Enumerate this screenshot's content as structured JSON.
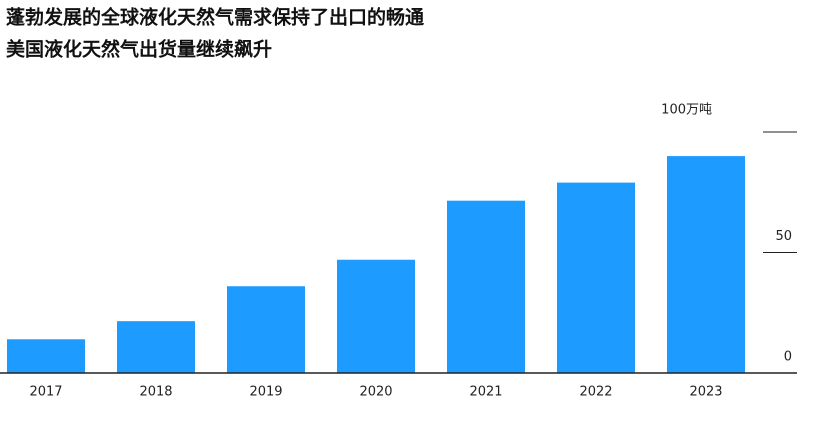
{
  "chart_data": {
    "type": "bar",
    "title": [
      "蓬勃发展的全球液化天然气需求保持了出口的畅通",
      "美国液化天然气出货量继续飙升"
    ],
    "categories": [
      "2017",
      "2018",
      "2019",
      "2020",
      "2021",
      "2022",
      "2023"
    ],
    "values": [
      14,
      21.5,
      36,
      47,
      71.5,
      79,
      90
    ],
    "color": "#1e9bff",
    "ylim": [
      0,
      100
    ],
    "yticks": [
      0,
      50,
      {
        "value": 100,
        "label": "100万吨"
      }
    ],
    "grid": false
  }
}
